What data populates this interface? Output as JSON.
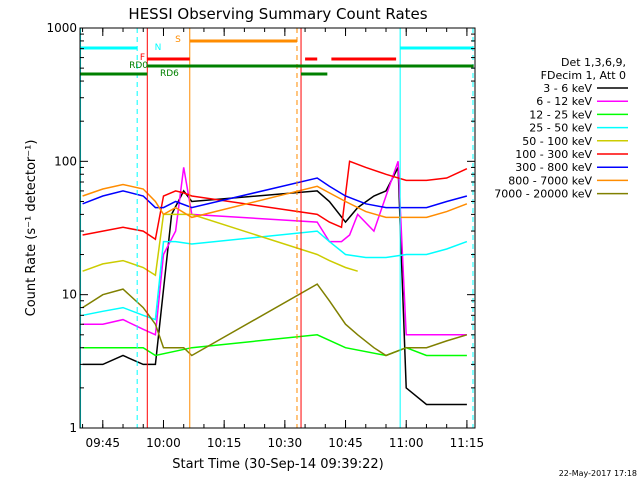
{
  "chart_data": {
    "type": "line",
    "title": "HESSI Observing Summary Count Rates",
    "xlabel": "Start Time (30-Sep-14 09:39:22)",
    "ylabel": "Count Rate (s⁻¹ detector⁻¹)",
    "y_scale": "log",
    "ylim": [
      1,
      1000
    ],
    "xlim": [
      "09:39:22",
      "11:17:00"
    ],
    "x_ticks": [
      "09:45",
      "10:00",
      "10:15",
      "10:30",
      "10:45",
      "11:00",
      "11:15"
    ],
    "y_ticks": [
      "1",
      "10",
      "100",
      "1000"
    ],
    "timestamp": "22-May-2017 17:18",
    "legend_position": "right",
    "legend_header": [
      "Det 1,3,6,9,",
      "FDecim 1, Att 0"
    ],
    "series": [
      {
        "name": "3 - 6 keV",
        "color": "#000000",
        "x": [
          "09:40",
          "09:45",
          "09:50",
          "09:55",
          "09:58",
          "10:02",
          "10:05",
          "10:07",
          "10:38",
          "10:41",
          "10:45",
          "10:48",
          "10:52",
          "10:55",
          "10:58",
          "11:00",
          "11:05",
          "11:10",
          "11:15"
        ],
        "y": [
          3,
          3,
          3.5,
          3,
          3,
          40,
          60,
          50,
          60,
          50,
          35,
          45,
          55,
          60,
          90,
          2,
          1.5,
          1.5,
          1.5
        ]
      },
      {
        "name": "6 - 12 keV",
        "color": "#ff00ff",
        "x": [
          "09:40",
          "09:45",
          "09:50",
          "09:55",
          "09:58",
          "10:00",
          "10:03",
          "10:05",
          "10:07",
          "10:38",
          "10:41",
          "10:44",
          "10:46",
          "10:48",
          "10:52",
          "10:55",
          "10:58",
          "11:00",
          "11:05",
          "11:10",
          "11:15"
        ],
        "y": [
          6,
          6,
          6.5,
          5.5,
          5,
          20,
          30,
          90,
          40,
          35,
          25,
          25,
          28,
          40,
          30,
          55,
          100,
          5,
          5,
          5,
          5
        ]
      },
      {
        "name": "12 - 25 keV",
        "color": "#00ff00",
        "x": [
          "09:40",
          "09:45",
          "09:50",
          "09:55",
          "09:58",
          "10:07",
          "10:38",
          "10:45",
          "10:55",
          "11:00",
          "11:05",
          "11:10",
          "11:15"
        ],
        "y": [
          4,
          4,
          4,
          4,
          3.5,
          4,
          5,
          4,
          3.5,
          4,
          3.5,
          3.5,
          3.5
        ]
      },
      {
        "name": "25 - 50 keV",
        "color": "#00ffff",
        "x": [
          "09:40",
          "09:45",
          "09:50",
          "09:55",
          "09:58",
          "10:00",
          "10:03",
          "10:07",
          "10:38",
          "10:41",
          "10:45",
          "10:50",
          "10:55",
          "11:00",
          "11:05",
          "11:10",
          "11:15"
        ],
        "y": [
          7,
          7.5,
          8,
          7,
          6.5,
          25,
          25,
          24,
          30,
          25,
          20,
          19,
          19,
          20,
          20,
          22,
          25
        ]
      },
      {
        "name": "50 - 100 keV",
        "color": "#cccc00",
        "x": [
          "09:40",
          "09:45",
          "09:50",
          "09:55",
          "09:58",
          "10:00",
          "10:03",
          "10:07",
          "10:38",
          "10:41",
          "10:45",
          "10:48"
        ],
        "y": [
          15,
          17,
          18,
          16,
          14,
          40,
          40,
          40,
          20,
          18,
          16,
          15
        ]
      },
      {
        "name": "100 - 300 keV",
        "color": "#ff0000",
        "x": [
          "09:40",
          "09:45",
          "09:50",
          "09:55",
          "09:58",
          "10:00",
          "10:03",
          "10:05",
          "10:07",
          "10:38",
          "10:41",
          "10:44",
          "10:46",
          "10:50",
          "10:55",
          "11:00",
          "11:05",
          "11:10",
          "11:15"
        ],
        "y": [
          28,
          30,
          32,
          30,
          26,
          55,
          60,
          58,
          55,
          40,
          35,
          32,
          100,
          90,
          80,
          72,
          72,
          75,
          88
        ]
      },
      {
        "name": "300 - 800 keV",
        "color": "#0000ff",
        "x": [
          "09:40",
          "09:45",
          "09:50",
          "09:55",
          "09:58",
          "10:00",
          "10:03",
          "10:07",
          "10:38",
          "10:41",
          "10:45",
          "10:50",
          "10:55",
          "11:00",
          "11:05",
          "11:10",
          "11:15"
        ],
        "y": [
          48,
          55,
          60,
          55,
          45,
          45,
          50,
          45,
          75,
          65,
          55,
          48,
          45,
          45,
          45,
          50,
          55
        ]
      },
      {
        "name": "800 - 7000 keV",
        "color": "#ff8c00",
        "x": [
          "09:40",
          "09:45",
          "09:50",
          "09:55",
          "09:58",
          "10:00",
          "10:03",
          "10:07",
          "10:38",
          "10:41",
          "10:45",
          "10:50",
          "10:55",
          "11:00",
          "11:05",
          "11:10",
          "11:15"
        ],
        "y": [
          55,
          62,
          67,
          62,
          50,
          40,
          45,
          38,
          65,
          58,
          50,
          42,
          38,
          38,
          38,
          42,
          48
        ]
      },
      {
        "name": "7000 - 20000 keV",
        "color": "#808000",
        "x": [
          "09:40",
          "09:45",
          "09:50",
          "09:55",
          "09:58",
          "10:00",
          "10:05",
          "10:07",
          "10:38",
          "10:41",
          "10:45",
          "10:48",
          "10:52",
          "10:55",
          "11:00",
          "11:05",
          "11:10",
          "11:15"
        ],
        "y": [
          8,
          10,
          11,
          8,
          6,
          4,
          4,
          3.5,
          12,
          9,
          6,
          5,
          4,
          3.5,
          4,
          4,
          4.5,
          5
        ]
      }
    ],
    "flag_bars": [
      {
        "label": "N",
        "color": "#00ffff",
        "segments": [
          [
            "09:39:30",
            "09:53:30"
          ],
          [
            "10:58:30",
            "11:16:40"
          ]
        ]
      },
      {
        "label": "S",
        "color": "#ff8c00",
        "segments": [
          [
            "10:06:30",
            "10:33:00"
          ]
        ]
      },
      {
        "label": "F",
        "color": "#ff0000",
        "segments": [
          [
            "09:56:00",
            "10:06:30"
          ],
          [
            "10:35:00",
            "10:38:00"
          ],
          [
            "10:41:30",
            "10:57:30"
          ]
        ]
      },
      {
        "label": "RD0",
        "color": "#008000",
        "segments": [
          [
            "09:56:00",
            "11:16:40"
          ]
        ]
      },
      {
        "label": "RD6",
        "color": "#008000",
        "segments": [
          [
            "09:39:30",
            "09:56:00"
          ],
          [
            "10:34:00",
            "10:40:30"
          ]
        ]
      }
    ],
    "vertical_markers": [
      {
        "time": "09:39:30",
        "color": "#00ffff",
        "style": "solid"
      },
      {
        "time": "09:53:30",
        "color": "#00ffff",
        "style": "dashed"
      },
      {
        "time": "09:56:00",
        "color": "#ff0000",
        "style": "solid"
      },
      {
        "time": "10:06:30",
        "color": "#ff8c00",
        "style": "solid"
      },
      {
        "time": "10:33:00",
        "color": "#ff8c00",
        "style": "dashed"
      },
      {
        "time": "10:34:00",
        "color": "#ff0000",
        "style": "solid"
      },
      {
        "time": "10:58:30",
        "color": "#00ffff",
        "style": "solid"
      },
      {
        "time": "11:16:30",
        "color": "#00ffff",
        "style": "dashed"
      }
    ]
  }
}
